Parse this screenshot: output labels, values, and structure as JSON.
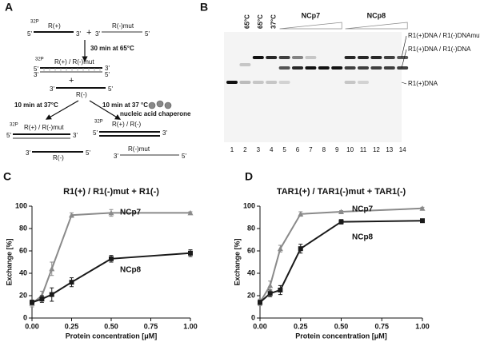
{
  "schematic": {
    "label": "A",
    "isotope": "32P",
    "ends": [
      "5'",
      "3'"
    ],
    "plus": "+",
    "step1": "30 min at 65°C",
    "strand_plus": "R(+)",
    "strand_minus": "R(-)",
    "strand_mut": "R(-)mut",
    "duplex_mut": "R(+) / R(-)mut",
    "duplex_wt": "R(+) / R(-)",
    "step2": "10 min at 37°C",
    "step3": "10 min at 37 °C",
    "chaperone": "nucleic acid chaperone"
  },
  "gel": {
    "label": "B",
    "temps": [
      "65°C",
      "65°C",
      "37°C"
    ],
    "groups": [
      "NCp7",
      "NCp8"
    ],
    "lanes": [
      1,
      2,
      3,
      4,
      5,
      6,
      7,
      8,
      9,
      10,
      11,
      12,
      13,
      14
    ],
    "bands": [
      "R1(+)DNA / R1(-)DNAmut",
      "R1(+)DNA / R1(-)DNA",
      "R1(+)DNA"
    ]
  },
  "chart_data": [
    {
      "type": "line",
      "panel_label": "C",
      "title": "R1(+) / R1(-)mut + R1(-)",
      "x_label": "Protein concentration [μM]",
      "y_label": "Exchange [%]",
      "x": [
        0,
        0.0625,
        0.125,
        0.25,
        0.5,
        1
      ],
      "series": [
        {
          "name": "NCp7",
          "color": "#8a8a8a",
          "marker": "triangle",
          "values": [
            13,
            20,
            44,
            92,
            94,
            94
          ],
          "errors": [
            3,
            4,
            6,
            2,
            3,
            1
          ]
        },
        {
          "name": "NCp8",
          "color": "#1a1a1a",
          "marker": "square",
          "values": [
            14,
            17,
            21,
            32,
            53,
            58
          ],
          "errors": [
            2,
            3,
            6,
            4,
            3,
            3
          ]
        }
      ],
      "xlim": [
        0,
        1
      ],
      "xticks": [
        {
          "value": 0,
          "label": "0.00"
        },
        {
          "value": 0.25,
          "label": "0.25"
        },
        {
          "value": 0.5,
          "label": "0.50"
        },
        {
          "value": 0.75,
          "label": "0.75"
        },
        {
          "value": 1,
          "label": "1.00"
        }
      ],
      "ylim": [
        0,
        100
      ],
      "yticks": [
        0,
        20,
        40,
        60,
        80,
        100
      ]
    },
    {
      "type": "line",
      "panel_label": "D",
      "title": "TAR1(+) / TAR1(-)mut + TAR1(-)",
      "x_label": "Protein concentration [μM]",
      "y_label": "Exchange [%]",
      "x": [
        0,
        0.0625,
        0.125,
        0.25,
        0.5,
        1
      ],
      "series": [
        {
          "name": "NCp7",
          "color": "#8a8a8a",
          "marker": "triangle",
          "values": [
            14,
            29,
            62,
            93,
            95,
            98
          ],
          "errors": [
            3,
            4,
            3,
            2,
            1,
            1
          ]
        },
        {
          "name": "NCp8",
          "color": "#1a1a1a",
          "marker": "square",
          "values": [
            14,
            22,
            25,
            62,
            86,
            87
          ],
          "errors": [
            2,
            3,
            4,
            4,
            2,
            1
          ]
        }
      ],
      "xlim": [
        0,
        1
      ],
      "xticks": [
        {
          "value": 0,
          "label": "0.00"
        },
        {
          "value": 0.25,
          "label": "0.25"
        },
        {
          "value": 0.5,
          "label": "0.50"
        },
        {
          "value": 0.75,
          "label": "0.75"
        },
        {
          "value": 1,
          "label": "1.00"
        }
      ],
      "ylim": [
        0,
        100
      ],
      "yticks": [
        0,
        20,
        40,
        60,
        80,
        100
      ]
    }
  ]
}
